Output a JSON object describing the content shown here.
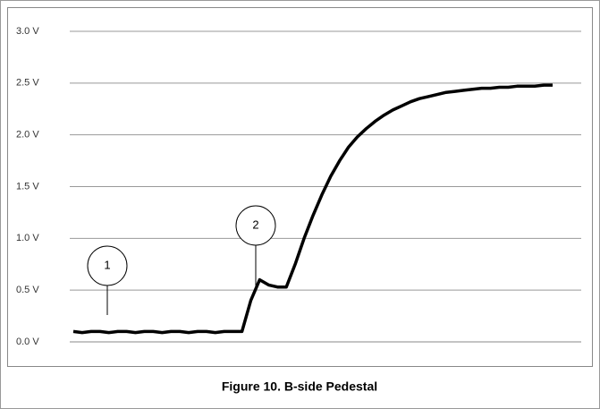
{
  "chart_data": {
    "type": "line",
    "title": "Figure 10. B-side Pedestal",
    "annotations": [
      "1",
      "2"
    ],
    "series": [
      {
        "color": "#000000",
        "values": [
          0.1,
          0.09,
          0.1,
          0.1,
          0.09,
          0.1,
          0.1,
          0.09,
          0.1,
          0.1,
          0.09,
          0.1,
          0.1,
          0.09,
          0.1,
          0.1,
          0.09,
          0.1,
          0.1,
          0.1,
          0.4,
          0.6,
          0.55,
          0.53,
          0.53,
          0.75,
          1.0,
          1.22,
          1.42,
          1.6,
          1.75,
          1.88,
          1.98,
          2.06,
          2.13,
          2.19,
          2.24,
          2.28,
          2.32,
          2.35,
          2.37,
          2.39,
          2.41,
          2.42,
          2.43,
          2.44,
          2.45,
          2.45,
          2.46,
          2.46,
          2.47,
          2.47,
          2.47,
          2.48,
          2.48
        ]
      }
    ],
    "ylim": [
      0,
      3
    ],
    "yticks": [
      {
        "value": 0,
        "label": "0.0 V"
      },
      {
        "value": 0.5,
        "label": "0.5 V"
      },
      {
        "value": 1,
        "label": "1.0 V"
      },
      {
        "value": 1.5,
        "label": "1.5 V"
      },
      {
        "value": 2,
        "label": "2.0 V"
      },
      {
        "value": 2.5,
        "label": "2.5 V"
      },
      {
        "value": 3,
        "label": "3.0 V"
      }
    ],
    "grid": true
  }
}
